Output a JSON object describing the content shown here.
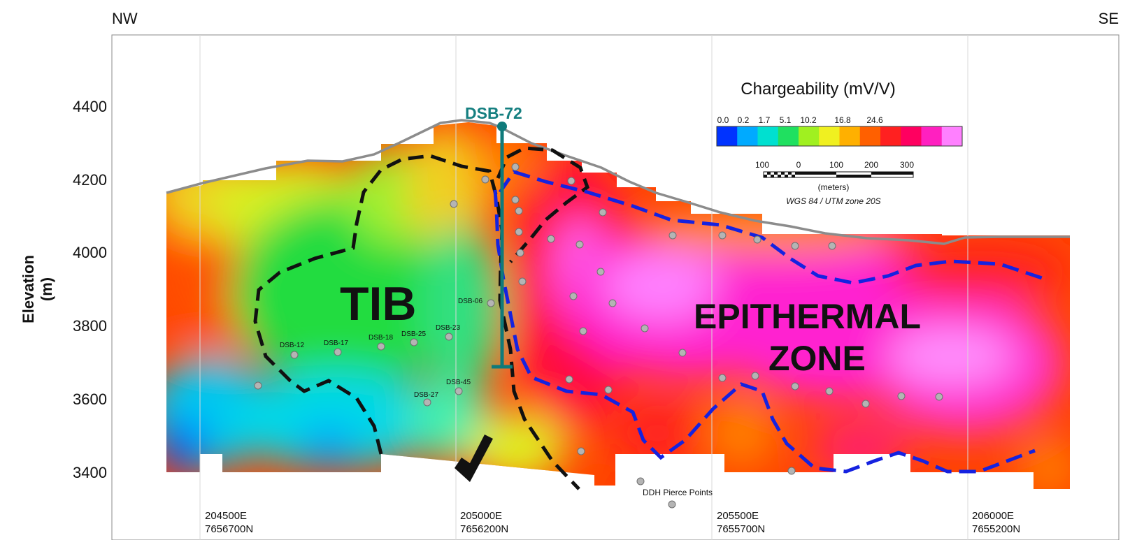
{
  "header": {
    "left": "NW",
    "right": "SE"
  },
  "axis": {
    "ylabel_line1": "Elevation",
    "ylabel_line2": "(m)",
    "ticks": [
      {
        "value": 4400,
        "label": "4400"
      },
      {
        "value": 4200,
        "label": "4200"
      },
      {
        "value": 4000,
        "label": "4000"
      },
      {
        "value": 3800,
        "label": "3800"
      },
      {
        "value": 3600,
        "label": "3600"
      },
      {
        "value": 3400,
        "label": "3400"
      }
    ]
  },
  "coords": [
    {
      "e": "204500E",
      "n": "7656700N"
    },
    {
      "e": "205000E",
      "n": "7656200N"
    },
    {
      "e": "205500E",
      "n": "7655700N"
    },
    {
      "e": "206000E",
      "n": "7655200N"
    }
  ],
  "legend": {
    "title": "Chargeability (mV/V)",
    "ticks": [
      "0.0",
      "0.2",
      "1.7",
      "5.1",
      "10.2",
      "16.8",
      "24.6"
    ],
    "colors": [
      "#0033ff",
      "#00aaff",
      "#00e0d0",
      "#20e060",
      "#a0f020",
      "#f0f020",
      "#ffb000",
      "#ff6000",
      "#ff2020",
      "#ff0060",
      "#ff20c0",
      "#ff80ff"
    ]
  },
  "scale": {
    "ticks": [
      "100",
      "0",
      "100",
      "200",
      "300"
    ],
    "unit": "(meters)",
    "crs": "WGS 84 / UTM zone 20S"
  },
  "labels": {
    "tib": "TIB",
    "epi_line1": "EPITHERMAL",
    "epi_line2": "ZONE",
    "drill": "DSB-72",
    "pierce": "DDH Pierce Points"
  },
  "holes": [
    "DSB-12",
    "DSB-17",
    "DSB-18",
    "DSB-25",
    "DSB-23",
    "DSB-06",
    "DSB-45",
    "DSB-27"
  ]
}
